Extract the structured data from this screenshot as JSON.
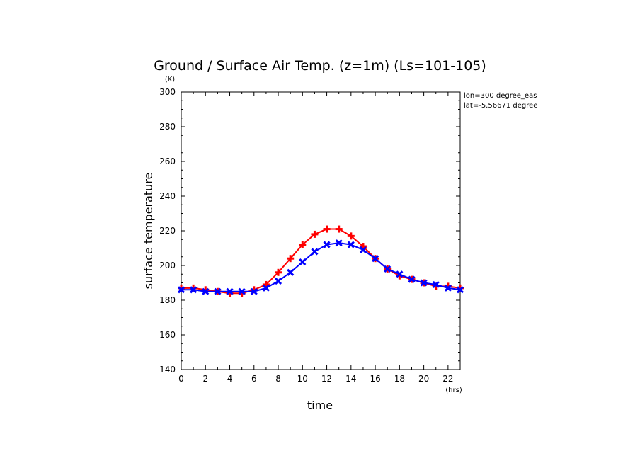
{
  "chart_data": {
    "type": "line",
    "title": "Ground / Surface Air Temp. (z=1m) (Ls=101-105)",
    "xlabel": "time",
    "ylabel": "surface temperature",
    "x_unit": "(hrs)",
    "y_unit": "(K)",
    "xlim": [
      0,
      23
    ],
    "ylim": [
      140,
      300
    ],
    "x_ticks": [
      0,
      2,
      4,
      6,
      8,
      10,
      12,
      14,
      16,
      18,
      20,
      22
    ],
    "y_ticks": [
      140,
      160,
      180,
      200,
      220,
      240,
      260,
      280,
      300
    ],
    "annotations": [
      "lon=300 degree_eas",
      "lat=-5.56671 degree"
    ],
    "grid": false,
    "x": [
      0,
      1,
      2,
      3,
      4,
      5,
      6,
      7,
      8,
      9,
      10,
      11,
      12,
      13,
      14,
      15,
      16,
      17,
      18,
      19,
      20,
      21,
      22,
      23
    ],
    "series": [
      {
        "color": "#ff0000",
        "marker": "plus",
        "values": [
          187,
          187,
          186,
          185,
          184,
          184,
          186,
          189,
          196,
          204,
          212,
          218,
          221,
          221,
          217,
          211,
          204,
          198,
          194,
          192,
          190,
          188,
          188,
          187
        ]
      },
      {
        "color": "#0000ff",
        "marker": "x",
        "values": [
          186,
          186,
          185,
          185,
          185,
          185,
          185,
          187,
          191,
          196,
          202,
          208,
          212,
          213,
          212,
          209,
          204,
          198,
          195,
          192,
          190,
          189,
          187,
          186
        ]
      }
    ]
  }
}
